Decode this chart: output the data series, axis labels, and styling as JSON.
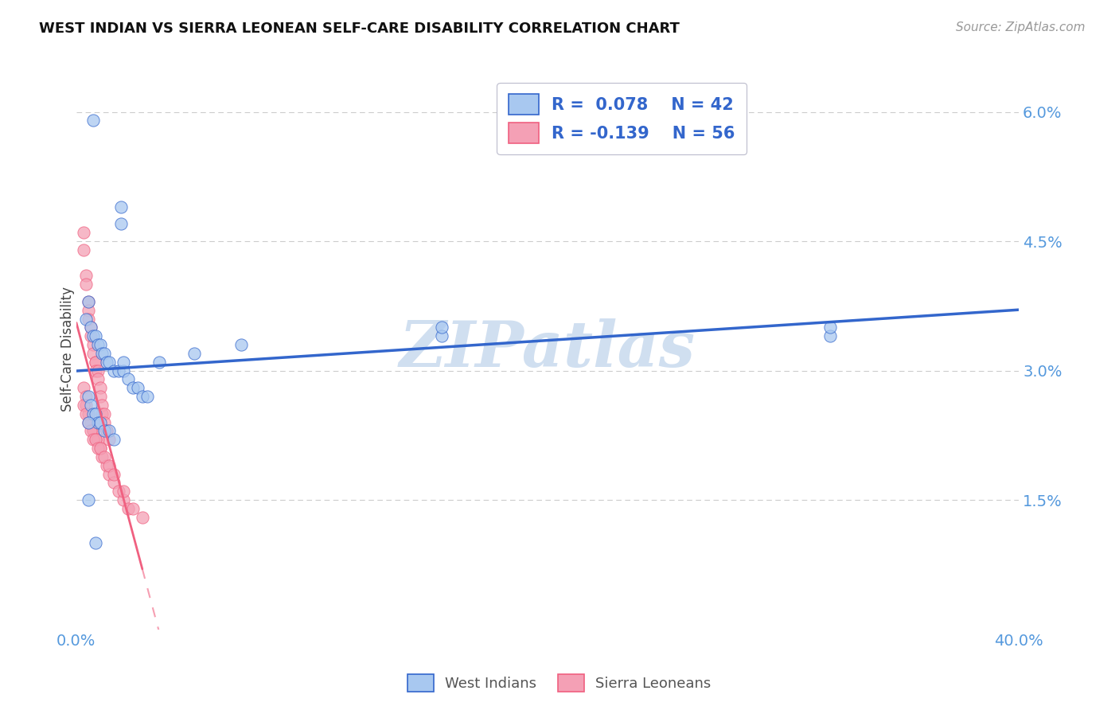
{
  "title": "WEST INDIAN VS SIERRA LEONEAN SELF-CARE DISABILITY CORRELATION CHART",
  "source": "Source: ZipAtlas.com",
  "ylabel": "Self-Care Disability",
  "xlim": [
    0.0,
    0.4
  ],
  "ylim": [
    0.0,
    0.065
  ],
  "yticks_right": [
    0.015,
    0.03,
    0.045,
    0.06
  ],
  "yticklabels_right": [
    "1.5%",
    "3.0%",
    "4.5%",
    "6.0%"
  ],
  "west_indian_color": "#A8C8F0",
  "sierra_leonean_color": "#F4A0B5",
  "trend_west_indian_color": "#3366CC",
  "trend_sierra_leonean_color": "#F06080",
  "west_indian_x": [
    0.007,
    0.019,
    0.019,
    0.005,
    0.004,
    0.006,
    0.007,
    0.008,
    0.009,
    0.01,
    0.011,
    0.012,
    0.013,
    0.014,
    0.016,
    0.018,
    0.02,
    0.022,
    0.024,
    0.026,
    0.028,
    0.03,
    0.035,
    0.05,
    0.07,
    0.005,
    0.006,
    0.007,
    0.008,
    0.009,
    0.01,
    0.012,
    0.014,
    0.016,
    0.02,
    0.155,
    0.155,
    0.32,
    0.32,
    0.005,
    0.005,
    0.008
  ],
  "west_indian_y": [
    0.059,
    0.049,
    0.047,
    0.038,
    0.036,
    0.035,
    0.034,
    0.034,
    0.033,
    0.033,
    0.032,
    0.032,
    0.031,
    0.031,
    0.03,
    0.03,
    0.03,
    0.029,
    0.028,
    0.028,
    0.027,
    0.027,
    0.031,
    0.032,
    0.033,
    0.027,
    0.026,
    0.025,
    0.025,
    0.024,
    0.024,
    0.023,
    0.023,
    0.022,
    0.031,
    0.034,
    0.035,
    0.034,
    0.035,
    0.024,
    0.015,
    0.01
  ],
  "sierra_leonean_x": [
    0.003,
    0.003,
    0.004,
    0.004,
    0.005,
    0.005,
    0.005,
    0.006,
    0.006,
    0.007,
    0.007,
    0.008,
    0.008,
    0.008,
    0.009,
    0.009,
    0.01,
    0.01,
    0.011,
    0.011,
    0.012,
    0.012,
    0.013,
    0.013,
    0.014,
    0.003,
    0.004,
    0.004,
    0.005,
    0.006,
    0.007,
    0.007,
    0.008,
    0.009,
    0.01,
    0.011,
    0.013,
    0.014,
    0.016,
    0.018,
    0.02,
    0.022,
    0.003,
    0.004,
    0.005,
    0.006,
    0.007,
    0.008,
    0.009,
    0.01,
    0.012,
    0.014,
    0.016,
    0.02,
    0.024,
    0.028
  ],
  "sierra_leonean_y": [
    0.046,
    0.044,
    0.041,
    0.04,
    0.038,
    0.037,
    0.036,
    0.035,
    0.034,
    0.033,
    0.032,
    0.031,
    0.031,
    0.03,
    0.03,
    0.029,
    0.028,
    0.027,
    0.026,
    0.025,
    0.025,
    0.024,
    0.023,
    0.023,
    0.022,
    0.028,
    0.027,
    0.026,
    0.025,
    0.024,
    0.023,
    0.023,
    0.022,
    0.022,
    0.021,
    0.02,
    0.019,
    0.018,
    0.017,
    0.016,
    0.015,
    0.014,
    0.026,
    0.025,
    0.024,
    0.023,
    0.022,
    0.022,
    0.021,
    0.021,
    0.02,
    0.019,
    0.018,
    0.016,
    0.014,
    0.013
  ],
  "background_color": "#FFFFFF",
  "watermark_color": "#D0DFF0",
  "legend_box_color": "#E8EEF8"
}
